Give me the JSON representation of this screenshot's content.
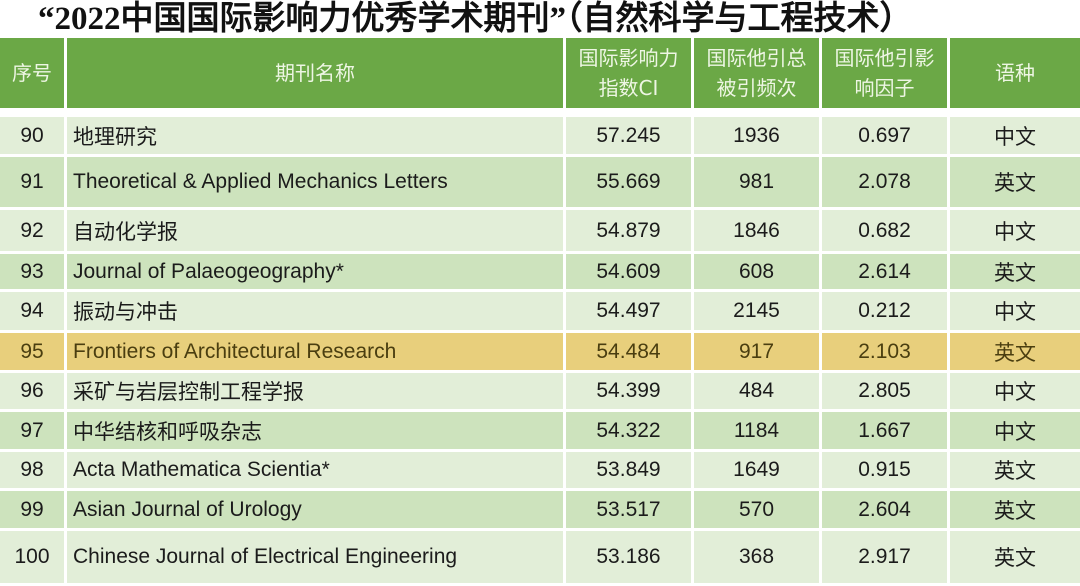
{
  "title": "“2022中国国际影响力优秀学术期刊”（自然科学与工程技术）",
  "headers": [
    "序号",
    "期刊名称",
    "国际影响力指数CI",
    "国际他引总被引频次",
    "国际他引影响因子",
    "语种"
  ],
  "highlight_color": "#e8cf7c",
  "header_color": "#6ba846",
  "rows": [
    {
      "rank": "90",
      "name": "地理研究",
      "ci": "57.245",
      "cites": "1936",
      "if": "0.697",
      "lang": "中文",
      "style": "light"
    },
    {
      "rank": "91",
      "name": "Theoretical & Applied Mechanics Letters",
      "ci": "55.669",
      "cites": "981",
      "if": "2.078",
      "lang": "英文",
      "style": "dark"
    },
    {
      "rank": "92",
      "name": "自动化学报",
      "ci": "54.879",
      "cites": "1846",
      "if": "0.682",
      "lang": "中文",
      "style": "light"
    },
    {
      "rank": "93",
      "name": "Journal of Palaeogeography*",
      "ci": "54.609",
      "cites": "608",
      "if": "2.614",
      "lang": "英文",
      "style": "dark"
    },
    {
      "rank": "94",
      "name": "振动与冲击",
      "ci": "54.497",
      "cites": "2145",
      "if": "0.212",
      "lang": "中文",
      "style": "light"
    },
    {
      "rank": "95",
      "name": "Frontiers of Architectural Research",
      "ci": "54.484",
      "cites": "917",
      "if": "2.103",
      "lang": "英文",
      "style": "hl"
    },
    {
      "rank": "96",
      "name": "采矿与岩层控制工程学报",
      "ci": "54.399",
      "cites": "484",
      "if": "2.805",
      "lang": "中文",
      "style": "light"
    },
    {
      "rank": "97",
      "name": "中华结核和呼吸杂志",
      "ci": "54.322",
      "cites": "1184",
      "if": "1.667",
      "lang": "中文",
      "style": "dark"
    },
    {
      "rank": "98",
      "name": "Acta Mathematica Scientia*",
      "ci": "53.849",
      "cites": "1649",
      "if": "0.915",
      "lang": "英文",
      "style": "light"
    },
    {
      "rank": "99",
      "name": "Asian Journal of Urology",
      "ci": "53.517",
      "cites": "570",
      "if": "2.604",
      "lang": "英文",
      "style": "dark"
    },
    {
      "rank": "100",
      "name": "Chinese Journal of Electrical Engineering",
      "ci": "53.186",
      "cites": "368",
      "if": "2.917",
      "lang": "英文",
      "style": "light"
    }
  ]
}
